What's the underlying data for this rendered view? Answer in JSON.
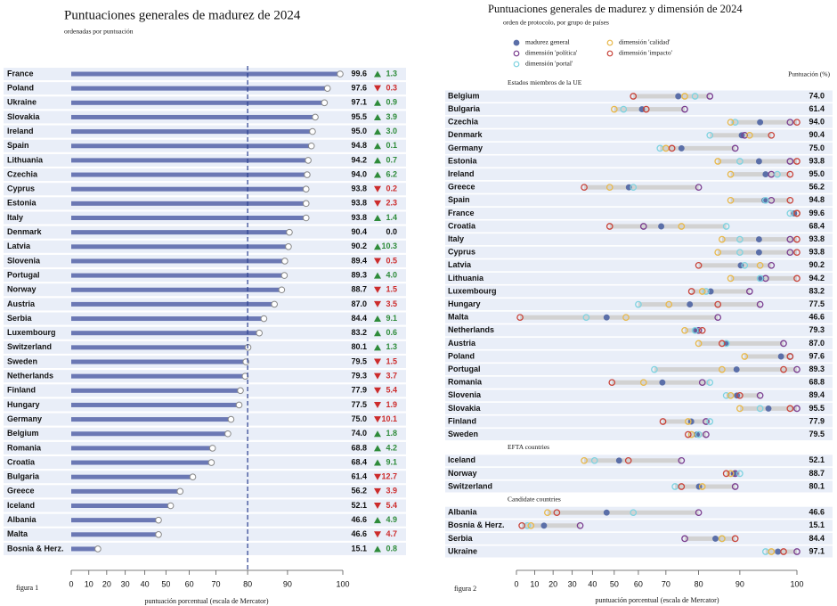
{
  "chart_data": [
    {
      "type": "bar",
      "orientation": "horizontal",
      "title": "Puntuaciones generales de madurez de 2024",
      "subtitle": "ordenadas por puntuación",
      "caption": "figura 1",
      "x_label": "puntuación porcentual (escala de Mercator)",
      "xscale": "mercator",
      "categories": [
        "France",
        "Poland",
        "Ukraine",
        "Slovakia",
        "Ireland",
        "Spain",
        "Lithuania",
        "Czechia",
        "Cyprus",
        "Estonia",
        "Italy",
        "Denmark",
        "Latvia",
        "Slovenia",
        "Portugal",
        "Norway",
        "Austria",
        "Serbia",
        "Luxembourg",
        "Switzerland",
        "Sweden",
        "Netherlands",
        "Finland",
        "Hungary",
        "Germany",
        "Belgium",
        "Romania",
        "Croatia",
        "Bulgaria",
        "Greece",
        "Iceland",
        "Albania",
        "Malta",
        "Bosnia & Herz."
      ],
      "values": [
        99.6,
        97.6,
        97.1,
        95.5,
        95,
        94.8,
        94.2,
        94,
        93.8,
        93.8,
        93.8,
        90.4,
        90.2,
        89.4,
        89.3,
        88.7,
        87,
        84.4,
        83.2,
        80.1,
        79.5,
        79.3,
        77.9,
        77.5,
        75,
        74,
        68.8,
        68.4,
        61.4,
        56.2,
        52.1,
        46.6,
        46.6,
        15.1
      ],
      "value_labels": [
        "99.6",
        "97.6",
        "97.1",
        "95.5",
        "95.0",
        "94.8",
        "94.2",
        "94.0",
        "93.8",
        "93.8",
        "93.8",
        "90.4",
        "90.2",
        "89.4",
        "89.3",
        "88.7",
        "87.0",
        "84.4",
        "83.2",
        "80.1",
        "79.5",
        "79.3",
        "77.9",
        "77.5",
        "75.0",
        "74.0",
        "68.8",
        "68.4",
        "61.4",
        "56.2",
        "52.1",
        "46.6",
        "46.6",
        "15.1"
      ],
      "color": "#6b78b4",
      "reference_line": 80,
      "change": {
        "values": [
          1.3,
          -0.3,
          0.9,
          3.9,
          3,
          0.1,
          0.7,
          6.2,
          -0.2,
          -2.3,
          1.4,
          0,
          10.3,
          -0.5,
          4,
          -1.5,
          -3.5,
          9.1,
          0.6,
          1.3,
          -1.5,
          -3.7,
          -5.4,
          -1.9,
          -10.1,
          1.8,
          4.2,
          9.1,
          -12.7,
          -3.9,
          -5.4,
          4.9,
          -4.7,
          0.8
        ],
        "value_labels": [
          "1.3",
          "0.3",
          "0.9",
          "3.9",
          "3.0",
          "0.1",
          "0.7",
          "6.2",
          "0.2",
          "2.3",
          "1.4",
          "0.0",
          "10.3",
          "0.5",
          "4.0",
          "1.5",
          "3.5",
          "9.1",
          "0.6",
          "1.3",
          "1.5",
          "3.7",
          "5.4",
          "1.9",
          "10.1",
          "1.8",
          "4.2",
          "9.1",
          "12.7",
          "3.9",
          "5.4",
          "4.9",
          "4.7",
          "0.8"
        ],
        "up_color": "#2e8b3a",
        "down_color": "#cc2b2b"
      },
      "xlim": [
        0,
        100
      ],
      "xticks": [
        0,
        10,
        20,
        30,
        40,
        50,
        60,
        70,
        80,
        90,
        100
      ]
    },
    {
      "type": "dot",
      "title": "Puntuaciones generales de madurez y dimensión de 2024",
      "subtitle": "orden de protocolo, por grupo de países",
      "caption": "figura 2",
      "x_label": "puntuación porcentual (escala de Mercator)",
      "xscale": "mercator",
      "value_header": "Puntuación (%)",
      "range_color": "#d2d2d2",
      "groups": [
        {
          "label": "Estados miembros de la UE",
          "categories": [
            "Belgium",
            "Bulgaria",
            "Czechia",
            "Denmark",
            "Germany",
            "Estonia",
            "Ireland",
            "Greece",
            "Spain",
            "France",
            "Croatia",
            "Italy",
            "Cyprus",
            "Latvia",
            "Lithuania",
            "Luxembourg",
            "Hungary",
            "Malta",
            "Netherlands",
            "Austria",
            "Poland",
            "Portugal",
            "Romania",
            "Slovenia",
            "Slovakia",
            "Finland",
            "Sweden"
          ]
        },
        {
          "label": "EFTA countries",
          "categories": [
            "Iceland",
            "Norway",
            "Switzerland"
          ]
        },
        {
          "label": "Candidate countries",
          "categories": [
            "Albania",
            "Bosnia & Herz.",
            "Serbia",
            "Ukraine"
          ]
        }
      ],
      "series": [
        {
          "name": "madurez general",
          "color": "#5b6fa8",
          "marker": "filled",
          "values": [
            74,
            61.4,
            94,
            90.4,
            75,
            93.8,
            95,
            56.2,
            94.8,
            99.6,
            68.4,
            93.8,
            93.8,
            90.2,
            94.2,
            83.2,
            77.5,
            46.6,
            79.3,
            87,
            97.6,
            89.3,
            68.8,
            89.4,
            95.5,
            77.9,
            79.5,
            52.1,
            88.7,
            80.1,
            46.6,
            15.1,
            84.4,
            97.1
          ],
          "value_labels": [
            "74.0",
            "61.4",
            "94.0",
            "90.4",
            "75.0",
            "93.8",
            "95.0",
            "56.2",
            "94.8",
            "99.6",
            "68.4",
            "93.8",
            "93.8",
            "90.2",
            "94.2",
            "83.2",
            "77.5",
            "46.6",
            "79.3",
            "87.0",
            "97.6",
            "89.3",
            "68.8",
            "89.4",
            "95.5",
            "77.9",
            "79.5",
            "52.1",
            "88.7",
            "80.1",
            "46.6",
            "15.1",
            "84.4",
            "97.1"
          ]
        },
        {
          "name": "dimensión 'política'",
          "color": "#7a3d8f",
          "marker": "ring",
          "values": [
            83,
            76,
            99,
            91,
            89,
            99,
            96,
            80,
            96,
            100,
            62,
            99,
            99,
            96,
            95,
            92,
            94,
            85,
            80,
            98,
            99,
            100,
            81,
            94,
            100,
            82,
            82,
            75,
            89,
            89,
            80,
            34,
            76,
            100
          ]
        },
        {
          "name": "dimensión 'portal'",
          "color": "#7fd3e0",
          "marker": "ring",
          "values": [
            79,
            54,
            89,
            83,
            68,
            90,
            97,
            58,
            95,
            99,
            87,
            90,
            90,
            91,
            94,
            82,
            60,
            37,
            79,
            87,
            99,
            66,
            83,
            87,
            94,
            83,
            80,
            41,
            90,
            73,
            58,
            6,
            86,
            95
          ]
        },
        {
          "name": "dimensión 'calidad'",
          "color": "#e8b84a",
          "marker": "ring",
          "values": [
            76,
            50,
            88,
            92,
            70,
            85,
            88,
            48,
            88,
            100,
            75,
            86,
            85,
            94,
            88,
            81,
            71,
            55,
            76,
            80,
            91,
            86,
            62,
            88,
            90,
            77,
            78,
            36,
            88,
            81,
            17,
            8,
            86,
            96
          ]
        },
        {
          "name": "dimensión 'impacto'",
          "color": "#c8443a",
          "marker": "ring",
          "values": [
            58,
            63,
            100,
            96,
            72,
            100,
            99,
            36,
            99,
            100,
            48,
            100,
            100,
            80,
            100,
            78,
            85,
            2,
            81,
            86,
            99,
            98,
            49,
            90,
            99,
            69,
            77,
            56,
            87,
            75,
            22,
            3,
            89,
            98
          ]
        }
      ],
      "xlim": [
        0,
        100
      ],
      "xticks": [
        0,
        10,
        20,
        30,
        40,
        50,
        60,
        70,
        80,
        90,
        100
      ]
    }
  ]
}
